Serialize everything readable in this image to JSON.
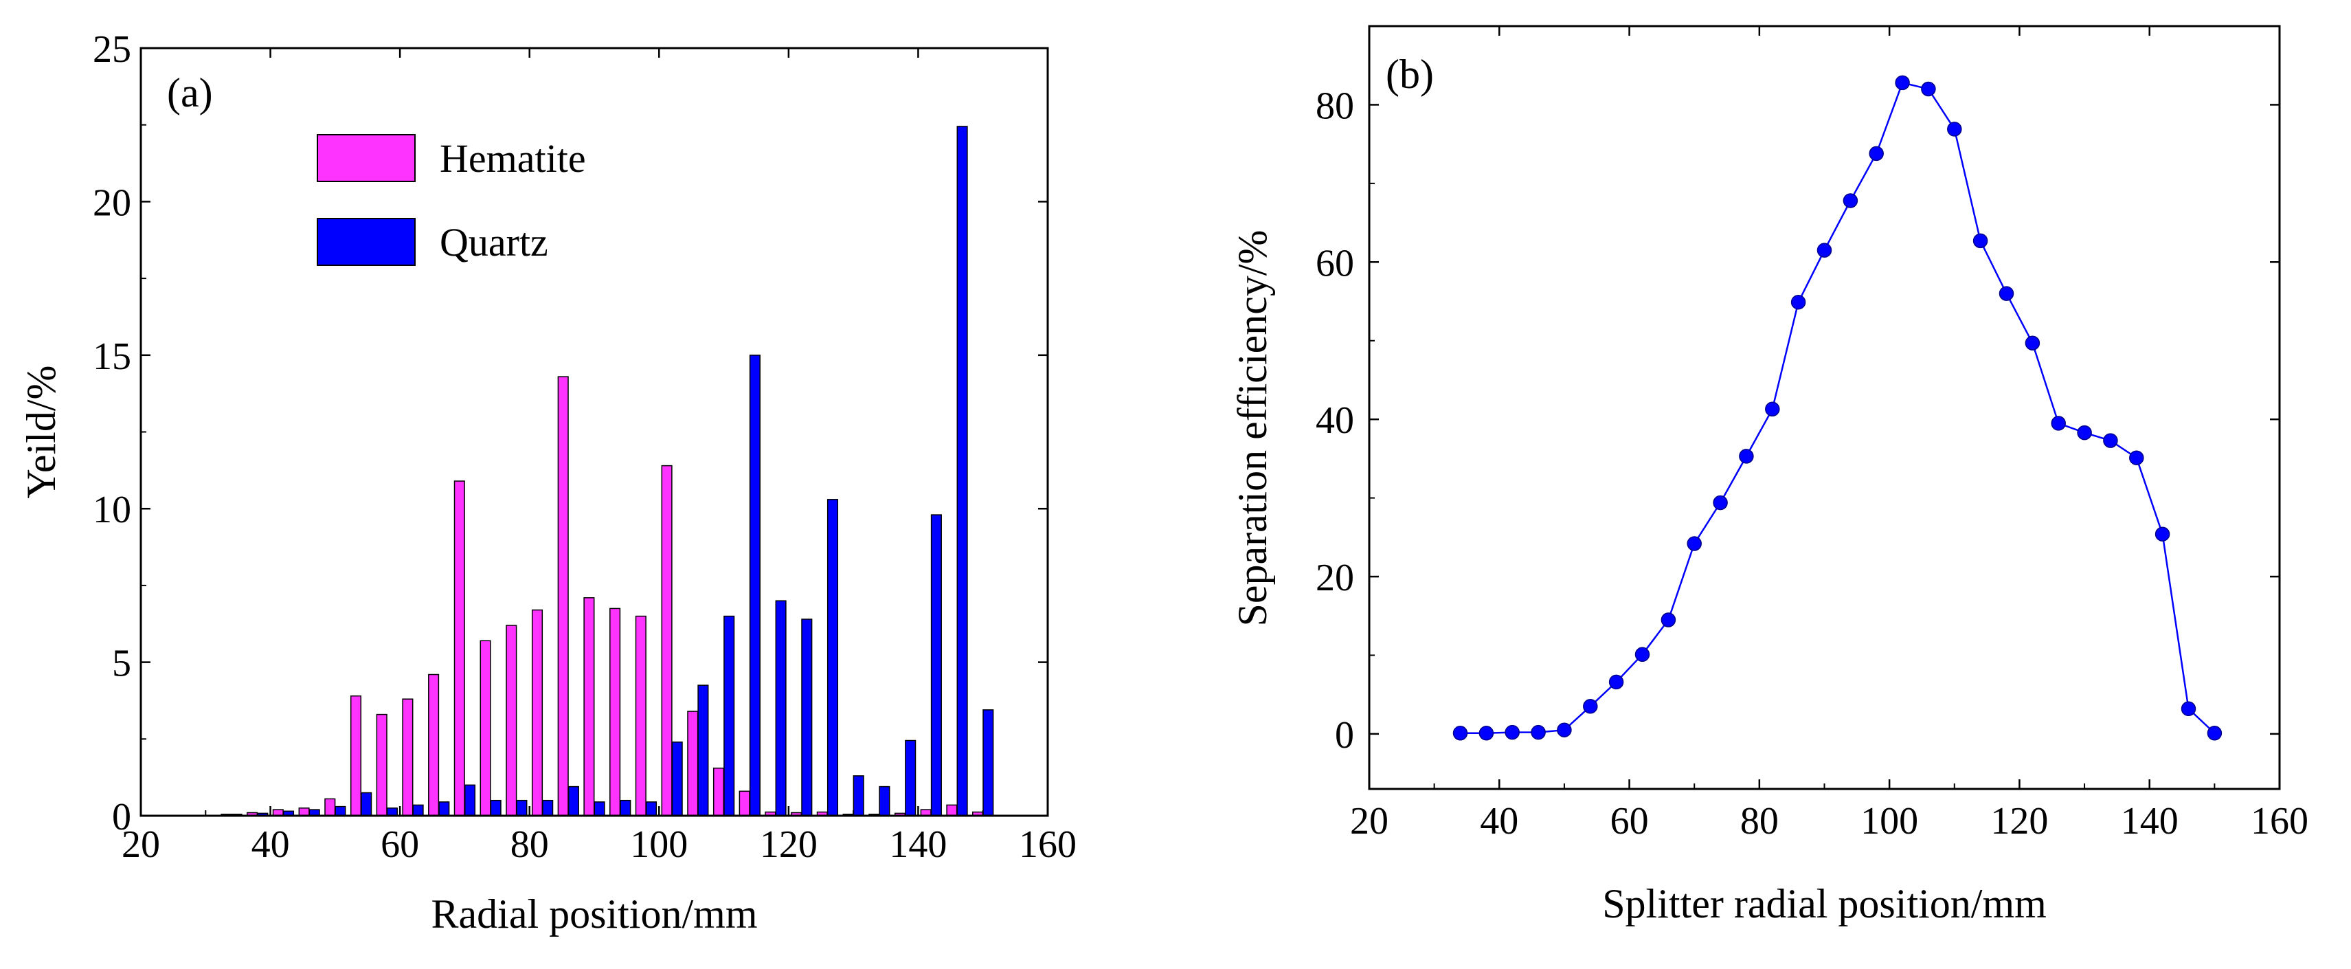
{
  "chart_data": [
    {
      "type": "bar",
      "panel_label": "(a)",
      "title": "",
      "xlabel": "Radial position/mm",
      "ylabel": "Yeild/%",
      "xlim": [
        20,
        160
      ],
      "ylim": [
        0,
        25
      ],
      "xticks": [
        "20",
        "40",
        "60",
        "80",
        "100",
        "120",
        "140",
        "160"
      ],
      "yticks": [
        "0",
        "5",
        "10",
        "15",
        "20",
        "25"
      ],
      "x": [
        34,
        38,
        42,
        46,
        50,
        54,
        58,
        62,
        66,
        70,
        74,
        78,
        82,
        86,
        90,
        94,
        98,
        102,
        106,
        110,
        114,
        118,
        122,
        126,
        130,
        134,
        138,
        142,
        146,
        150
      ],
      "series": [
        {
          "name": "Hematite",
          "color": "#ff33ff",
          "values": [
            0.05,
            0.1,
            0.2,
            0.25,
            0.55,
            3.9,
            3.3,
            3.8,
            4.6,
            10.9,
            5.7,
            6.2,
            6.7,
            14.3,
            7.1,
            6.75,
            6.5,
            11.4,
            3.4,
            1.55,
            0.8,
            0.12,
            0.1,
            0.12,
            0.05,
            0.05,
            0.08,
            0.2,
            0.35,
            0.12
          ]
        },
        {
          "name": "Quartz",
          "color": "#0000ff",
          "values": [
            0.05,
            0.08,
            0.15,
            0.2,
            0.3,
            0.75,
            0.25,
            0.35,
            0.45,
            1.0,
            0.5,
            0.5,
            0.5,
            0.95,
            0.45,
            0.5,
            0.45,
            2.4,
            4.25,
            6.5,
            15.0,
            7.0,
            6.4,
            10.3,
            1.3,
            0.95,
            2.45,
            9.8,
            22.45,
            3.45
          ]
        }
      ],
      "legend": "upper-left"
    },
    {
      "type": "line",
      "panel_label": "(b)",
      "title": "",
      "xlabel": "Splitter radial position/mm",
      "ylabel": "Separation efficiency/%",
      "xlim": [
        20,
        160
      ],
      "ylim": [
        -7,
        90
      ],
      "xticks": [
        "20",
        "40",
        "60",
        "80",
        "100",
        "120",
        "140",
        "160"
      ],
      "yticks": [
        "0",
        "20",
        "40",
        "60",
        "80"
      ],
      "series": [
        {
          "name": "Separation efficiency",
          "color": "#0000ff",
          "x": [
            34,
            38,
            42,
            46,
            50,
            54,
            58,
            62,
            66,
            70,
            74,
            78,
            82,
            86,
            90,
            94,
            98,
            102,
            106,
            110,
            114,
            118,
            122,
            126,
            130,
            134,
            138,
            142,
            146,
            150
          ],
          "y": [
            0.1,
            0.1,
            0.2,
            0.2,
            0.5,
            3.5,
            6.6,
            10.1,
            14.5,
            24.2,
            29.4,
            35.3,
            41.3,
            54.9,
            61.5,
            67.8,
            73.8,
            82.8,
            82.0,
            76.9,
            62.7,
            56.0,
            49.7,
            39.5,
            38.3,
            37.3,
            35.1,
            25.4,
            3.2,
            0.1
          ]
        }
      ]
    }
  ]
}
